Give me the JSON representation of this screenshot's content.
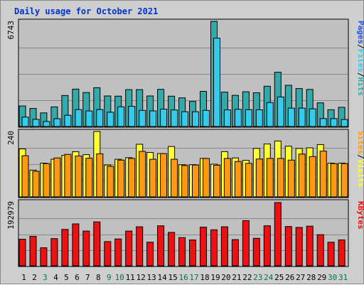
{
  "chart_data": {
    "type": "bar",
    "title": "Daily usage for October 2021",
    "categories": [
      "1",
      "2",
      "3",
      "4",
      "5",
      "6",
      "7",
      "8",
      "9",
      "10",
      "11",
      "12",
      "13",
      "14",
      "15",
      "16",
      "17",
      "18",
      "19",
      "20",
      "21",
      "22",
      "23",
      "24",
      "25",
      "26",
      "27",
      "28",
      "29",
      "30",
      "31"
    ],
    "weekend_days": [
      "3",
      "9",
      "10",
      "16",
      "17",
      "23",
      "24",
      "30",
      "31"
    ],
    "colors": {
      "pages": "#2255ee",
      "files": "#33ccee",
      "hits": "#33aaaa",
      "visits": "#ffff33",
      "sites": "#ff9911",
      "kbytes": "#ee1111",
      "weekday_label": "#000000",
      "weekend_label": "#007744",
      "background": "#c0c0c0",
      "frame": "#cecece"
    },
    "panels": [
      {
        "id": "traffic",
        "ylim": [
          0,
          6743
        ],
        "max_label": "6743",
        "legend": [
          {
            "text": "Pages",
            "color": "#2255ee"
          },
          {
            "text": "/",
            "color": "#000000"
          },
          {
            "text": "Files",
            "color": "#33ccee"
          },
          {
            "text": "/",
            "color": "#000000"
          },
          {
            "text": "Hits",
            "color": "#33aaaa"
          }
        ],
        "series": [
          {
            "key": "hits",
            "values": [
              1318,
              1157,
              875,
              1258,
              1985,
              2397,
              2176,
              2488,
              1957,
              1944,
              2363,
              2363,
              1958,
              2383,
              1944,
              1836,
              1609,
              2257,
              6743,
              2207,
              1998,
              2227,
              2166,
              2583,
              3483,
              2643,
              2432,
              2380,
              1518,
              1076,
              1229
            ]
          },
          {
            "key": "files",
            "values": [
              607,
              459,
              324,
              499,
              718,
              1085,
              998,
              1091,
              918,
              1260,
              1294,
              1033,
              1004,
              1115,
              1060,
              949,
              946,
              1032,
              5665,
              1065,
              1104,
              1080,
              1072,
              1537,
              1895,
              1178,
              1181,
              1134,
              512,
              507,
              452
            ]
          }
        ]
      },
      {
        "id": "visitors",
        "ylim": [
          0,
          240
        ],
        "max_label": "240",
        "legend": [
          {
            "text": "Sites",
            "color": "#ff9911"
          },
          {
            "text": "/",
            "color": "#000000"
          },
          {
            "text": "Visits",
            "color": "#ffff33"
          }
        ],
        "series": [
          {
            "key": "visits",
            "values": [
              176,
              98,
              124,
              138,
              152,
              166,
              155,
              240,
              117,
              138,
              144,
              193,
              163,
              159,
              185,
              118,
              118,
              141,
              120,
              166,
              143,
              134,
              178,
              194,
              205,
              186,
              178,
              180,
              192,
              124,
              124
            ]
          },
          {
            "key": "sites",
            "values": [
              151,
              94,
              122,
              143,
              156,
              150,
              142,
              158,
              112,
              135,
              141,
              167,
              138,
              159,
              138,
              115,
              117,
              141,
              116,
              141,
              130,
              123,
              139,
              141,
              141,
              135,
              157,
              148,
              168,
              122,
              122
            ]
          }
        ]
      },
      {
        "id": "bytes",
        "ylim": [
          0,
          192979
        ],
        "max_label": "192979",
        "legend": [
          {
            "text": "KBytes",
            "color": "#ee1111"
          }
        ],
        "series": [
          {
            "key": "kbytes",
            "values": [
              81000,
              90000,
              55000,
              83000,
              111000,
              128000,
              106000,
              134000,
              74000,
              82000,
              106000,
              119000,
              72000,
              122000,
              102000,
              86000,
              79000,
              118000,
              110000,
              119000,
              80000,
              138000,
              84000,
              122000,
              192979,
              120000,
              117000,
              121000,
              95000,
              72000,
              79000
            ]
          }
        ]
      }
    ]
  }
}
